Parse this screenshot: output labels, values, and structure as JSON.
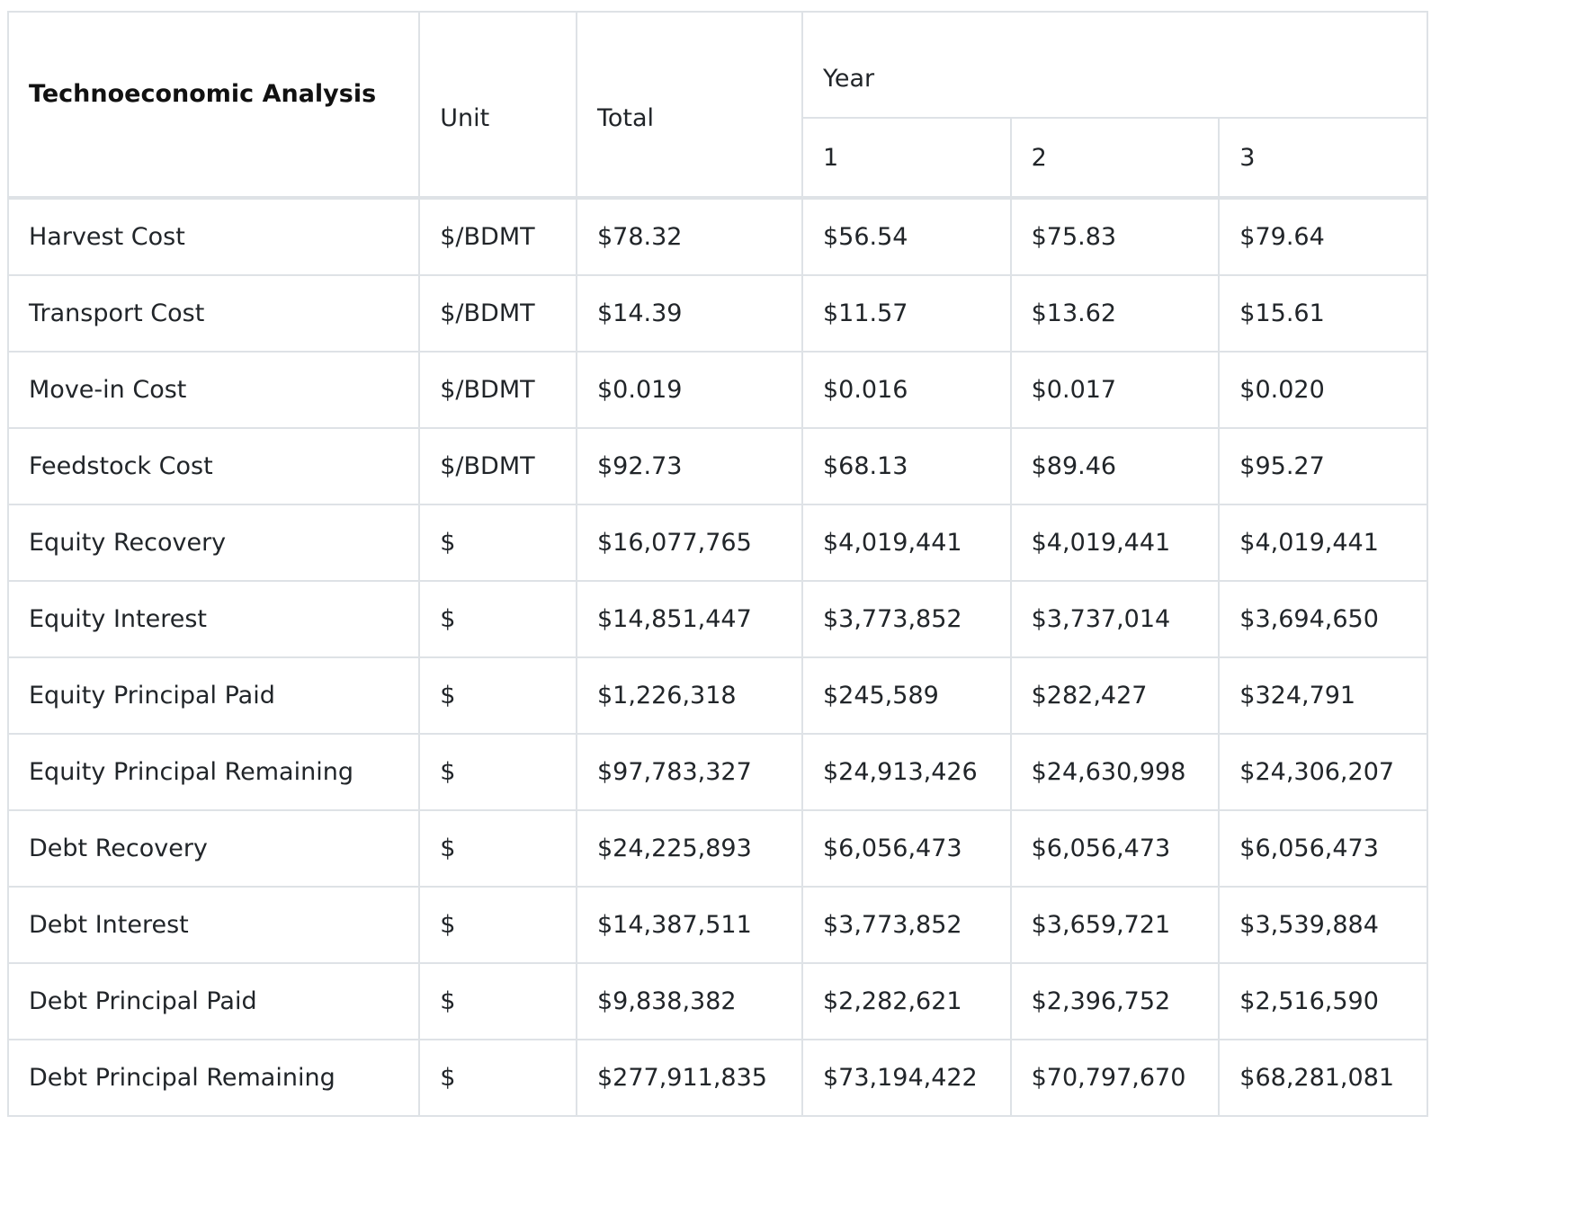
{
  "table": {
    "title": "Technoeconomic Analysis",
    "headers": {
      "unit": "Unit",
      "total": "Total",
      "year": "Year",
      "years": [
        "1",
        "2",
        "3"
      ]
    },
    "rows": [
      {
        "label": "Harvest Cost",
        "unit": "$/BDMT",
        "total": "$78.32",
        "y1": "$56.54",
        "y2": "$75.83",
        "y3": "$79.64"
      },
      {
        "label": "Transport Cost",
        "unit": "$/BDMT",
        "total": "$14.39",
        "y1": "$11.57",
        "y2": "$13.62",
        "y3": "$15.61"
      },
      {
        "label": "Move-in Cost",
        "unit": "$/BDMT",
        "total": "$0.019",
        "y1": "$0.016",
        "y2": "$0.017",
        "y3": "$0.020"
      },
      {
        "label": "Feedstock Cost",
        "unit": "$/BDMT",
        "total": "$92.73",
        "y1": "$68.13",
        "y2": "$89.46",
        "y3": "$95.27"
      },
      {
        "label": "Equity Recovery",
        "unit": "$",
        "total": "$16,077,765",
        "y1": "$4,019,441",
        "y2": "$4,019,441",
        "y3": "$4,019,441"
      },
      {
        "label": "Equity Interest",
        "unit": "$",
        "total": "$14,851,447",
        "y1": "$3,773,852",
        "y2": "$3,737,014",
        "y3": "$3,694,650"
      },
      {
        "label": "Equity Principal Paid",
        "unit": "$",
        "total": "$1,226,318",
        "y1": "$245,589",
        "y2": "$282,427",
        "y3": "$324,791"
      },
      {
        "label": "Equity Principal Remaining",
        "unit": "$",
        "total": "$97,783,327",
        "y1": "$24,913,426",
        "y2": "$24,630,998",
        "y3": "$24,306,207"
      },
      {
        "label": "Debt Recovery",
        "unit": "$",
        "total": "$24,225,893",
        "y1": "$6,056,473",
        "y2": "$6,056,473",
        "y3": "$6,056,473"
      },
      {
        "label": "Debt Interest",
        "unit": "$",
        "total": "$14,387,511",
        "y1": "$3,773,852",
        "y2": "$3,659,721",
        "y3": "$3,539,884"
      },
      {
        "label": "Debt Principal Paid",
        "unit": "$",
        "total": "$9,838,382",
        "y1": "$2,282,621",
        "y2": "$2,396,752",
        "y3": "$2,516,590"
      },
      {
        "label": "Debt Principal Remaining",
        "unit": "$",
        "total": "$277,911,835",
        "y1": "$73,194,422",
        "y2": "$70,797,670",
        "y3": "$68,281,081"
      }
    ]
  }
}
